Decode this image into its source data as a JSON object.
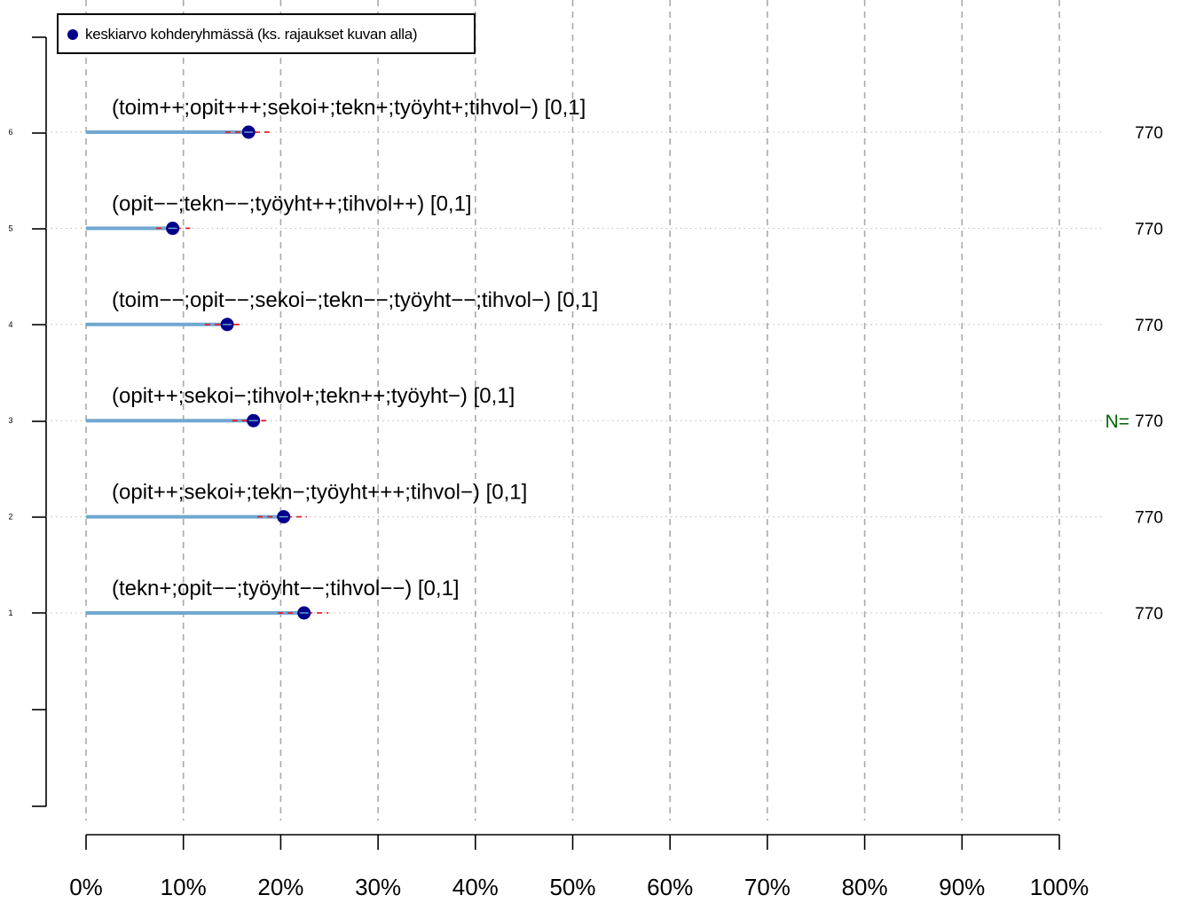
{
  "chart_data": {
    "type": "scatter",
    "orientation": "horizontal",
    "legend": {
      "label": "keskiarvo kohderyhmässä (ks. rajaukset kuvan alla)",
      "placement": "top-left",
      "marker_color": "#00008b"
    },
    "x_ticks": [
      "0%",
      "10%",
      "20%",
      "30%",
      "40%",
      "50%",
      "60%",
      "70%",
      "80%",
      "90%",
      "100%"
    ],
    "xlim": [
      0,
      100
    ],
    "y_ticks": [
      "1",
      "2",
      "3",
      "4",
      "5",
      "6"
    ],
    "grid": true,
    "n_prefix": "N=",
    "colors": {
      "bar": "#6fa8d1",
      "interval": "#e8202a",
      "point": "#00008b",
      "n_label": "#006400"
    },
    "rows": [
      {
        "index": "6",
        "label": "(toim++;opit+++;sekoi+;tekn+;työyht+;tihvol−) [0,1]",
        "mean": 16.7,
        "ci": [
          14.3,
          19.3
        ],
        "n": "770"
      },
      {
        "index": "5",
        "label": "(opit−−;tekn−−;työyht++;tihvol++) [0,1]",
        "mean": 8.9,
        "ci": [
          7.2,
          10.7
        ],
        "n": "770"
      },
      {
        "index": "4",
        "label": "(toim−−;opit−−;sekoi−;tekn−−;työyht−−;tihvol−) [0,1]",
        "mean": 14.5,
        "ci": [
          12.2,
          16.0
        ],
        "n": "770"
      },
      {
        "index": "3",
        "label": "(opit++;sekoi−;tihvol+;tekn++;työyht−) [0,1]",
        "mean": 17.2,
        "ci": [
          15.0,
          18.5
        ],
        "n": "770"
      },
      {
        "index": "2",
        "label": "(opit++;sekoi+;tekn−;työyht+++;tihvol−) [0,1]",
        "mean": 20.3,
        "ci": [
          17.6,
          22.7
        ],
        "n": "770"
      },
      {
        "index": "1",
        "label": "(tekn+;opit−−;työyht−−;tihvol−−) [0,1]",
        "mean": 22.4,
        "ci": [
          19.7,
          24.9
        ],
        "n": "770"
      }
    ]
  }
}
